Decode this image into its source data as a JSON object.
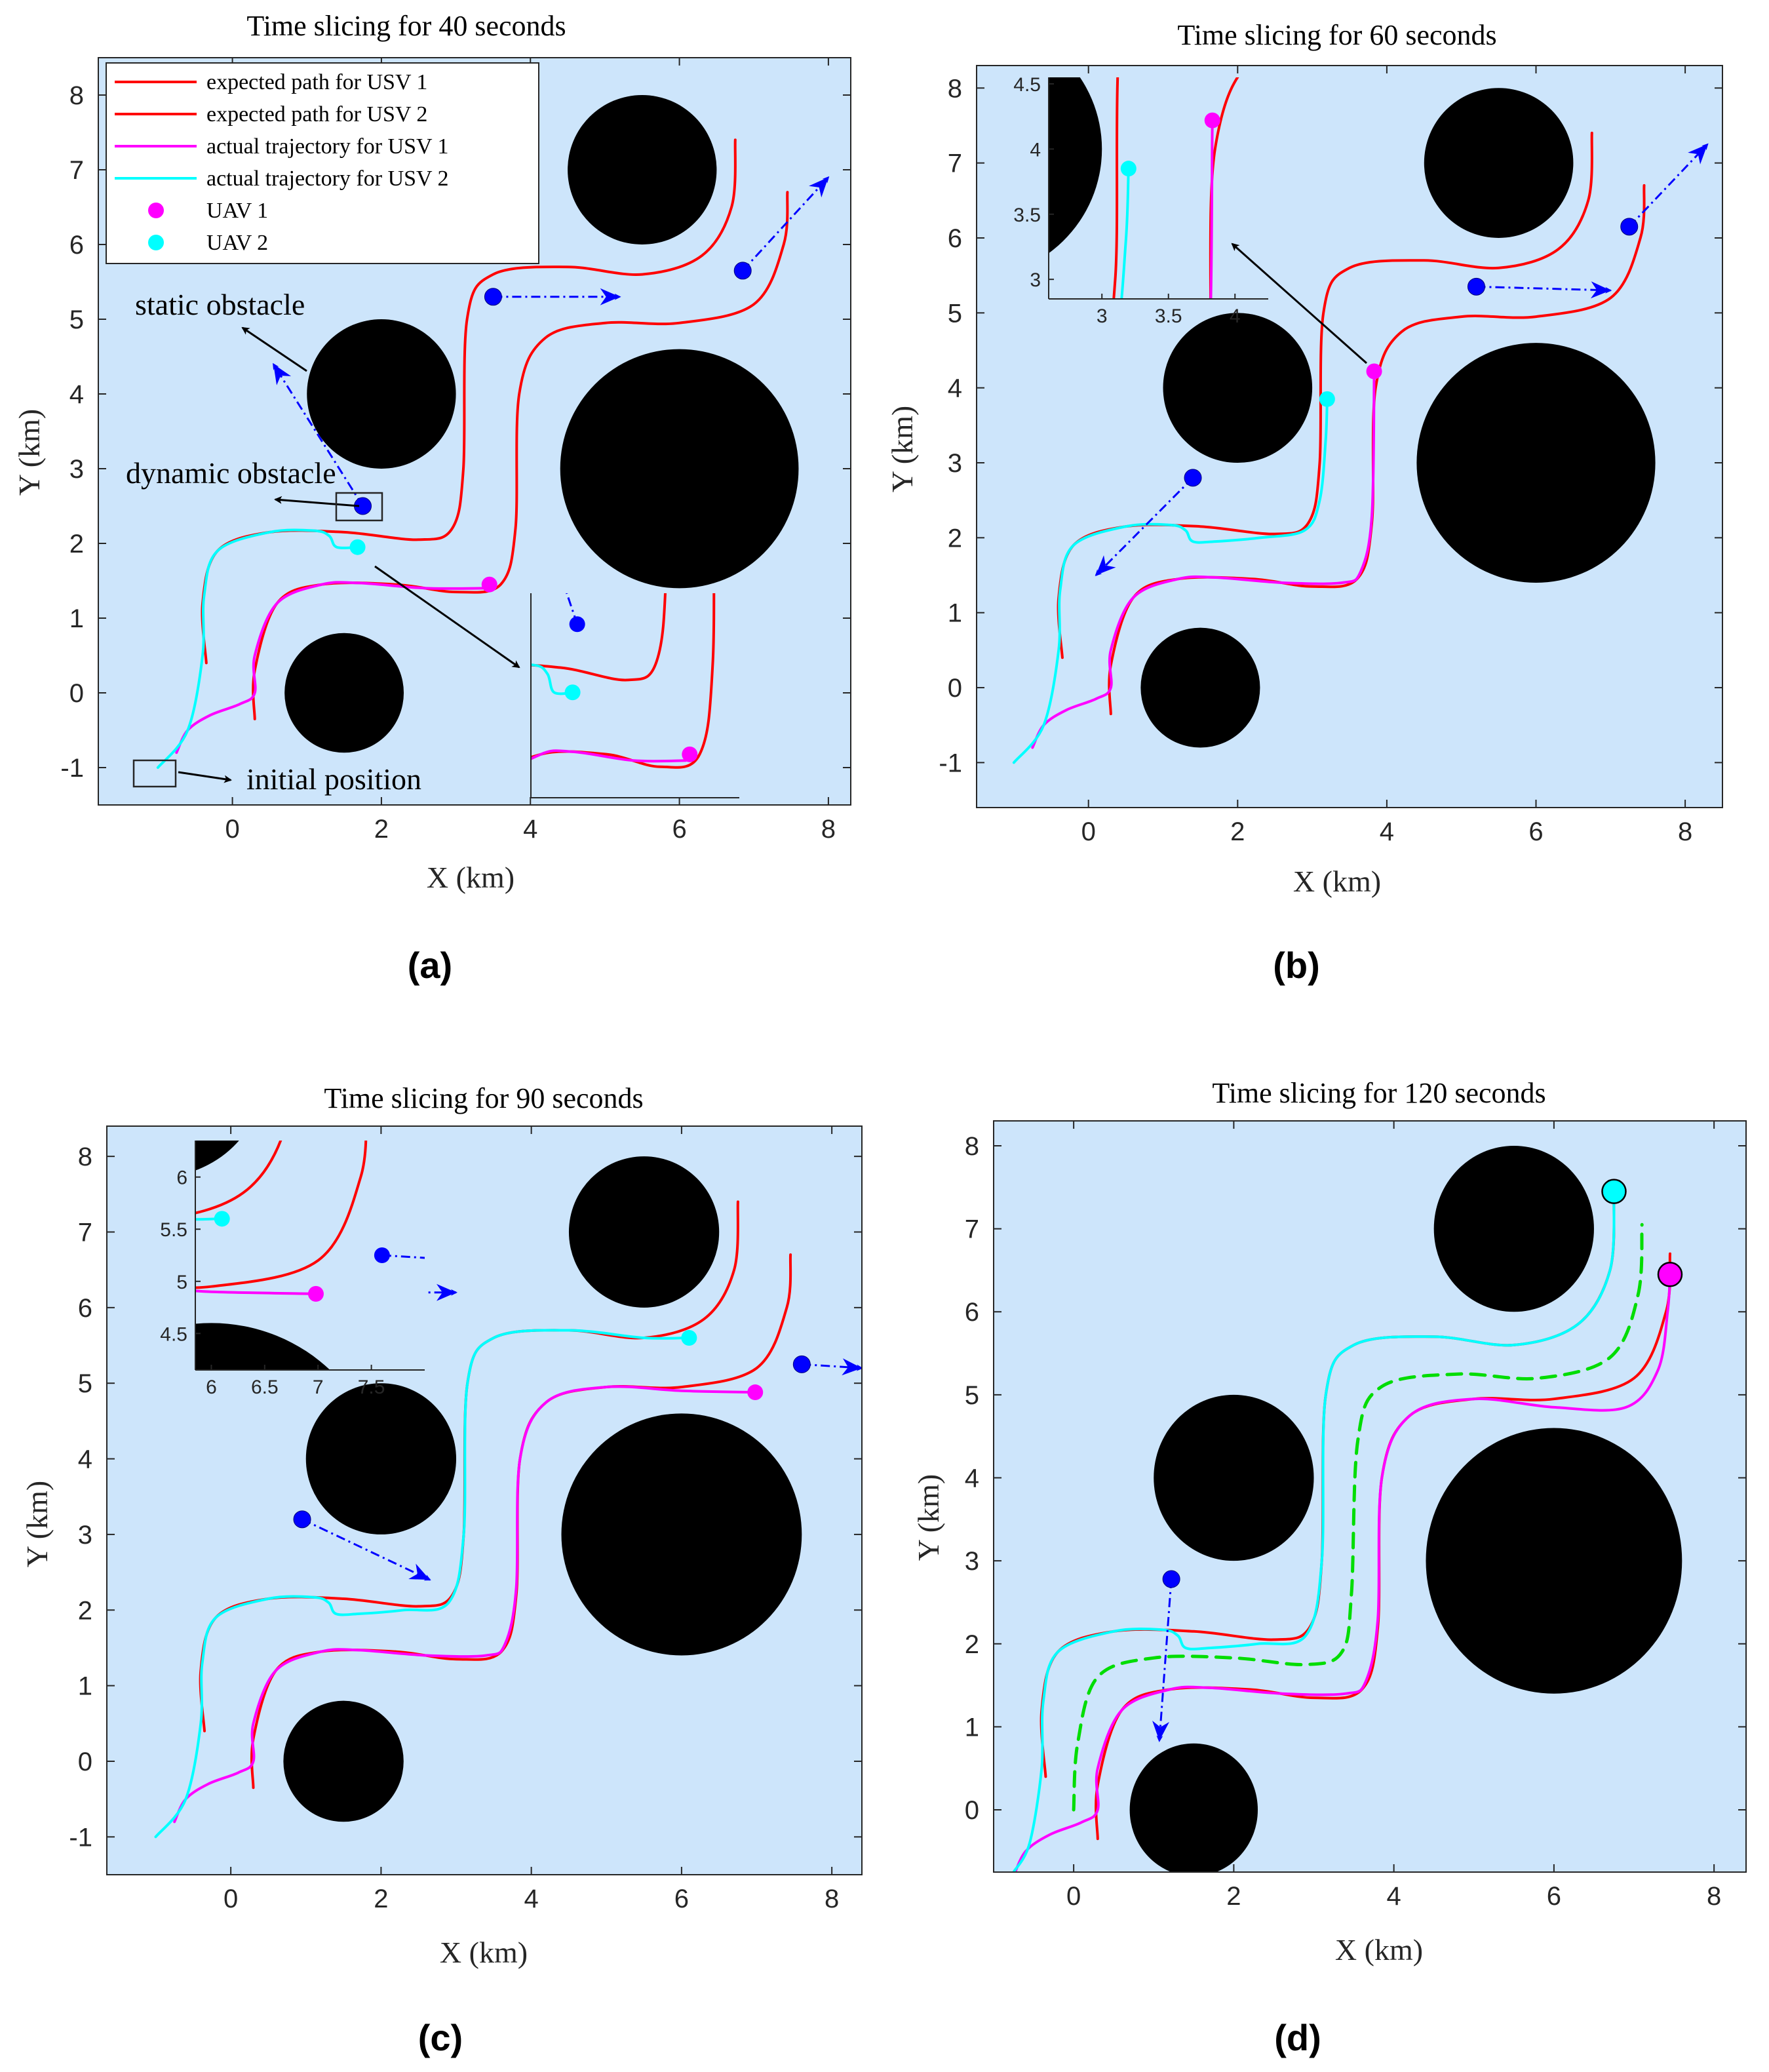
{
  "chart_data": [
    {
      "type": "line",
      "panel_label": "(a)",
      "title": "Time slicing for 40 seconds",
      "xlabel": "X (km)",
      "ylabel": "Y (km)",
      "xlim": [
        -1.8,
        8.3
      ],
      "ylim": [
        -1.5,
        8.5
      ],
      "xticks": [
        0,
        2,
        4,
        6,
        8
      ],
      "yticks": [
        -1,
        0,
        1,
        2,
        3,
        4,
        5,
        6,
        7,
        8
      ],
      "show_legend": true,
      "legend": [
        {
          "label": "expected path for USV 1",
          "color": "#ff0000",
          "kind": "line"
        },
        {
          "label": "expected path for USV 2",
          "color": "#ff0000",
          "kind": "line"
        },
        {
          "label": "actual trajectory for USV 1",
          "color": "#ff00ff",
          "kind": "line"
        },
        {
          "label": "actual trajectory for USV 2",
          "color": "#00ffff",
          "kind": "line"
        },
        {
          "label": "UAV 1",
          "color": "#ff00ff",
          "kind": "dot"
        },
        {
          "label": "UAV 2",
          "color": "#00ffff",
          "kind": "dot"
        }
      ],
      "annotations": [
        "static obstacle",
        "dynamic obstacle",
        "initial position"
      ],
      "obstacles": [
        {
          "x": 5.5,
          "y": 7.0,
          "r": 1.0
        },
        {
          "x": 2.0,
          "y": 4.0,
          "r": 1.0
        },
        {
          "x": 6.0,
          "y": 3.0,
          "r": 1.6
        },
        {
          "x": 1.5,
          "y": 0.0,
          "r": 0.8
        }
      ],
      "series": [
        {
          "name": "expected path for USV 1",
          "color": "#ff0000",
          "style": "solid",
          "x": [
            0.3,
            0.3,
            0.6,
            1.2,
            2.2,
            3.0,
            3.6,
            3.8,
            3.85,
            4.2,
            5.0,
            6.0,
            7.0,
            7.4,
            7.45
          ],
          "y": [
            -0.35,
            0.3,
            1.2,
            1.45,
            1.45,
            1.35,
            1.45,
            2.2,
            4.0,
            4.75,
            4.95,
            4.95,
            5.2,
            6.0,
            6.7
          ]
        },
        {
          "name": "expected path for USV 2",
          "color": "#ff0000",
          "style": "solid",
          "x": [
            -0.35,
            -0.4,
            -0.2,
            0.5,
            1.5,
            2.5,
            2.95,
            3.1,
            3.15,
            3.5,
            4.5,
            5.5,
            6.3,
            6.7,
            6.75
          ],
          "y": [
            0.4,
            1.2,
            1.9,
            2.15,
            2.15,
            2.05,
            2.2,
            3.0,
            5.0,
            5.6,
            5.7,
            5.6,
            5.85,
            6.5,
            7.4
          ]
        },
        {
          "name": "actual trajectory for USV 1",
          "color": "#ff00ff",
          "style": "solid",
          "x": [
            -0.75,
            -0.6,
            -0.3,
            0.1,
            0.3,
            0.3,
            0.6,
            1.2,
            1.7,
            2.6,
            3.4
          ],
          "y": [
            -0.8,
            -0.5,
            -0.3,
            -0.15,
            0.0,
            0.5,
            1.2,
            1.45,
            1.47,
            1.4,
            1.4
          ]
        },
        {
          "name": "actual trajectory for USV 2",
          "color": "#00ffff",
          "style": "solid",
          "x": [
            -1.0,
            -0.6,
            -0.4,
            -0.38,
            -0.2,
            0.5,
            1.1,
            1.3,
            1.4,
            1.7
          ],
          "y": [
            -1.0,
            -0.5,
            0.5,
            1.3,
            1.9,
            2.15,
            2.17,
            2.1,
            1.95,
            1.95
          ]
        }
      ],
      "uavs": [
        {
          "name": "UAV 1",
          "x": 3.45,
          "y": 1.45,
          "color": "#ff00ff"
        },
        {
          "name": "UAV 2",
          "x": 1.68,
          "y": 1.95,
          "color": "#00ffff"
        }
      ],
      "dynamic_obstacles": [
        {
          "x": 1.75,
          "y": 2.5,
          "dx": -1.2,
          "dy": 1.9
        },
        {
          "x": 3.5,
          "y": 5.3,
          "dx": 1.7,
          "dy": 0.0
        },
        {
          "x": 6.85,
          "y": 5.65,
          "dx": 1.15,
          "dy": 1.25
        }
      ]
    },
    {
      "type": "line",
      "panel_label": "(b)",
      "title": "Time slicing for 60 seconds",
      "xlabel": "X (km)",
      "ylabel": "Y (km)",
      "xlim": [
        -1.5,
        8.5
      ],
      "ylim": [
        -1.6,
        8.3
      ],
      "xticks": [
        0,
        2,
        4,
        6,
        8
      ],
      "yticks": [
        -1,
        0,
        1,
        2,
        3,
        4,
        5,
        6,
        7,
        8
      ],
      "show_legend": false,
      "inset": {
        "xlim": [
          2.6,
          4.25
        ],
        "ylim": [
          2.85,
          4.55
        ],
        "xticks": [
          3,
          3.5,
          4
        ],
        "yticks": [
          3,
          3.5,
          4,
          4.5
        ]
      },
      "obstacles": [
        {
          "x": 5.5,
          "y": 7.0,
          "r": 1.0
        },
        {
          "x": 2.0,
          "y": 4.0,
          "r": 1.0
        },
        {
          "x": 6.0,
          "y": 3.0,
          "r": 1.6
        },
        {
          "x": 1.5,
          "y": 0.0,
          "r": 0.8
        }
      ],
      "series": [
        {
          "name": "expected path for USV 1",
          "color": "#ff0000",
          "style": "solid",
          "x": [
            0.3,
            0.3,
            0.6,
            1.2,
            2.2,
            3.0,
            3.6,
            3.8,
            3.85,
            4.2,
            5.0,
            6.0,
            7.0,
            7.4,
            7.45
          ],
          "y": [
            -0.35,
            0.3,
            1.2,
            1.45,
            1.45,
            1.35,
            1.45,
            2.2,
            4.0,
            4.75,
            4.95,
            4.95,
            5.2,
            6.0,
            6.7
          ]
        },
        {
          "name": "expected path for USV 2",
          "color": "#ff0000",
          "style": "solid",
          "x": [
            -0.35,
            -0.4,
            -0.2,
            0.5,
            1.5,
            2.5,
            2.95,
            3.1,
            3.15,
            3.5,
            4.5,
            5.5,
            6.3,
            6.7,
            6.75
          ],
          "y": [
            0.4,
            1.2,
            1.9,
            2.15,
            2.15,
            2.05,
            2.2,
            3.0,
            5.0,
            5.6,
            5.7,
            5.6,
            5.85,
            6.5,
            7.4
          ]
        },
        {
          "name": "actual trajectory for USV 1",
          "color": "#ff00ff",
          "style": "solid",
          "x": [
            -0.75,
            -0.6,
            -0.3,
            0.1,
            0.3,
            0.3,
            0.6,
            1.2,
            1.7,
            2.6,
            3.4,
            3.65,
            3.8,
            3.83
          ],
          "y": [
            -0.8,
            -0.5,
            -0.3,
            -0.15,
            0.0,
            0.5,
            1.2,
            1.45,
            1.47,
            1.4,
            1.4,
            1.55,
            2.3,
            4.2
          ]
        },
        {
          "name": "actual trajectory for USV 2",
          "color": "#00ffff",
          "style": "solid",
          "x": [
            -1.0,
            -0.6,
            -0.4,
            -0.38,
            -0.2,
            0.5,
            1.1,
            1.3,
            1.4,
            1.7,
            2.3,
            2.9,
            3.1,
            3.18,
            3.2
          ],
          "y": [
            -1.0,
            -0.5,
            0.5,
            1.3,
            1.9,
            2.15,
            2.17,
            2.1,
            1.95,
            1.95,
            2.0,
            2.1,
            2.5,
            3.3,
            3.85
          ]
        }
      ],
      "uavs": [
        {
          "name": "UAV 1",
          "x": 3.83,
          "y": 4.22,
          "color": "#ff00ff"
        },
        {
          "name": "UAV 2",
          "x": 3.2,
          "y": 3.85,
          "color": "#00ffff"
        }
      ],
      "dynamic_obstacles": [
        {
          "x": 1.4,
          "y": 2.8,
          "dx": -1.3,
          "dy": -1.3
        },
        {
          "x": 5.2,
          "y": 5.35,
          "dx": 1.8,
          "dy": -0.05
        },
        {
          "x": 7.25,
          "y": 6.15,
          "dx": 1.05,
          "dy": 1.1
        }
      ]
    },
    {
      "type": "line",
      "panel_label": "(c)",
      "title": "Time slicing for 90 seconds",
      "xlabel": "X (km)",
      "ylabel": "Y (km)",
      "xlim": [
        -1.65,
        8.4
      ],
      "ylim": [
        -1.5,
        8.4
      ],
      "xticks": [
        0,
        2,
        4,
        6,
        8
      ],
      "yticks": [
        -1,
        0,
        1,
        2,
        3,
        4,
        5,
        6,
        7,
        8
      ],
      "show_legend": false,
      "inset": {
        "xlim": [
          5.85,
          8.0
        ],
        "ylim": [
          4.15,
          6.35
        ],
        "xticks": [
          6,
          6.5,
          7,
          7.5
        ],
        "yticks": [
          4.5,
          5,
          5.5,
          6
        ]
      },
      "obstacles": [
        {
          "x": 5.5,
          "y": 7.0,
          "r": 1.0
        },
        {
          "x": 2.0,
          "y": 4.0,
          "r": 1.0
        },
        {
          "x": 6.0,
          "y": 3.0,
          "r": 1.6
        },
        {
          "x": 1.5,
          "y": 0.0,
          "r": 0.8
        }
      ],
      "series": [
        {
          "name": "expected path for USV 1",
          "color": "#ff0000",
          "style": "solid",
          "x": [
            0.3,
            0.3,
            0.6,
            1.2,
            2.2,
            3.0,
            3.6,
            3.8,
            3.85,
            4.2,
            5.0,
            6.0,
            7.0,
            7.4,
            7.45
          ],
          "y": [
            -0.35,
            0.3,
            1.2,
            1.45,
            1.45,
            1.35,
            1.45,
            2.2,
            4.0,
            4.75,
            4.95,
            4.95,
            5.2,
            6.0,
            6.7
          ]
        },
        {
          "name": "expected path for USV 2",
          "color": "#ff0000",
          "style": "solid",
          "x": [
            -0.35,
            -0.4,
            -0.2,
            0.5,
            1.5,
            2.5,
            2.95,
            3.1,
            3.15,
            3.5,
            4.5,
            5.5,
            6.3,
            6.7,
            6.75
          ],
          "y": [
            0.4,
            1.2,
            1.9,
            2.15,
            2.15,
            2.05,
            2.2,
            3.0,
            5.0,
            5.6,
            5.7,
            5.6,
            5.85,
            6.5,
            7.4
          ]
        },
        {
          "name": "actual trajectory for USV 1",
          "color": "#ff00ff",
          "style": "solid",
          "x": [
            -0.75,
            -0.6,
            -0.3,
            0.1,
            0.3,
            0.3,
            0.6,
            1.2,
            1.7,
            2.6,
            3.4,
            3.65,
            3.8,
            3.85,
            4.2,
            5.0,
            6.0,
            6.98
          ],
          "y": [
            -0.8,
            -0.5,
            -0.3,
            -0.15,
            0.0,
            0.5,
            1.2,
            1.45,
            1.47,
            1.4,
            1.4,
            1.55,
            2.3,
            4.0,
            4.75,
            4.95,
            4.9,
            4.88
          ]
        },
        {
          "name": "actual trajectory for USV 2",
          "color": "#00ffff",
          "style": "solid",
          "x": [
            -1.0,
            -0.6,
            -0.4,
            -0.38,
            -0.2,
            0.5,
            1.1,
            1.3,
            1.4,
            1.7,
            2.3,
            2.9,
            3.1,
            3.15,
            3.5,
            4.5,
            5.5,
            6.1
          ],
          "y": [
            -1.0,
            -0.5,
            0.5,
            1.3,
            1.9,
            2.15,
            2.17,
            2.1,
            1.95,
            1.95,
            2.0,
            2.1,
            3.0,
            5.0,
            5.6,
            5.7,
            5.6,
            5.6
          ]
        }
      ],
      "uavs": [
        {
          "name": "UAV 1",
          "x": 6.98,
          "y": 4.88,
          "color": "#ff00ff"
        },
        {
          "name": "UAV 2",
          "x": 6.1,
          "y": 5.6,
          "color": "#00ffff"
        }
      ],
      "dynamic_obstacles": [
        {
          "x": 0.95,
          "y": 3.2,
          "dx": 1.7,
          "dy": -0.8
        },
        {
          "x": 1.95,
          "y": 6.2,
          "dx": 1.05,
          "dy": 0.0
        },
        {
          "x": 7.6,
          "y": 5.25,
          "dx": 0.8,
          "dy": -0.05
        }
      ]
    },
    {
      "type": "line",
      "panel_label": "(d)",
      "title": "Time slicing for 120 seconds",
      "xlabel": "X (km)",
      "ylabel": "Y (km)",
      "xlim": [
        -1.0,
        8.4
      ],
      "ylim": [
        -0.75,
        8.3
      ],
      "xticks": [
        0,
        2,
        4,
        6,
        8
      ],
      "yticks": [
        0,
        1,
        2,
        3,
        4,
        5,
        6,
        7,
        8
      ],
      "show_legend": false,
      "obstacles": [
        {
          "x": 5.5,
          "y": 7.0,
          "r": 1.0
        },
        {
          "x": 2.0,
          "y": 4.0,
          "r": 1.0
        },
        {
          "x": 6.0,
          "y": 3.0,
          "r": 1.6
        },
        {
          "x": 1.5,
          "y": 0.0,
          "r": 0.8
        }
      ],
      "series": [
        {
          "name": "expected path for USV 1",
          "color": "#ff0000",
          "style": "solid",
          "x": [
            0.3,
            0.3,
            0.6,
            1.2,
            2.2,
            3.0,
            3.6,
            3.8,
            3.85,
            4.2,
            5.0,
            6.0,
            7.0,
            7.4,
            7.45
          ],
          "y": [
            -0.35,
            0.3,
            1.2,
            1.45,
            1.45,
            1.35,
            1.45,
            2.2,
            4.0,
            4.75,
            4.95,
            4.95,
            5.2,
            6.0,
            6.7
          ]
        },
        {
          "name": "expected path for USV 2",
          "color": "#ff0000",
          "style": "solid",
          "x": [
            -0.35,
            -0.4,
            -0.2,
            0.5,
            1.5,
            2.5,
            2.95,
            3.1,
            3.15,
            3.5,
            4.5,
            5.5,
            6.3,
            6.7,
            6.75
          ],
          "y": [
            0.4,
            1.2,
            1.9,
            2.15,
            2.15,
            2.05,
            2.2,
            3.0,
            5.0,
            5.6,
            5.7,
            5.6,
            5.85,
            6.5,
            7.4
          ]
        },
        {
          "name": "actual trajectory for USV 1",
          "color": "#ff00ff",
          "style": "solid",
          "x": [
            -0.75,
            -0.6,
            -0.3,
            0.1,
            0.3,
            0.3,
            0.6,
            1.2,
            1.7,
            2.6,
            3.4,
            3.65,
            3.8,
            3.85,
            4.2,
            5.0,
            6.0,
            6.9,
            7.3,
            7.42,
            7.45
          ],
          "y": [
            -0.8,
            -0.5,
            -0.3,
            -0.15,
            0.0,
            0.5,
            1.2,
            1.45,
            1.47,
            1.4,
            1.4,
            1.55,
            2.3,
            4.0,
            4.75,
            4.95,
            4.85,
            4.85,
            5.3,
            6.0,
            6.45
          ]
        },
        {
          "name": "actual trajectory for USV 2",
          "color": "#00ffff",
          "style": "solid",
          "x": [
            -0.75,
            -0.55,
            -0.4,
            -0.38,
            -0.2,
            0.5,
            1.1,
            1.3,
            1.4,
            1.7,
            2.3,
            2.9,
            3.1,
            3.15,
            3.5,
            4.5,
            5.5,
            6.3,
            6.7,
            6.75
          ],
          "y": [
            -0.75,
            -0.4,
            0.5,
            1.3,
            1.9,
            2.15,
            2.17,
            2.1,
            1.95,
            1.95,
            2.0,
            2.1,
            3.0,
            5.0,
            5.6,
            5.7,
            5.6,
            5.85,
            6.5,
            7.45
          ]
        },
        {
          "name": "centre line",
          "color": "#00dd00",
          "style": "dashed",
          "x": [
            0.0,
            0.05,
            0.3,
            1.0,
            2.0,
            2.9,
            3.35,
            3.47,
            3.55,
            3.85,
            4.8,
            5.8,
            6.7,
            7.05,
            7.1
          ],
          "y": [
            0.0,
            0.8,
            1.6,
            1.83,
            1.83,
            1.75,
            1.9,
            2.6,
            4.45,
            5.1,
            5.25,
            5.2,
            5.45,
            6.2,
            7.05
          ]
        }
      ],
      "uavs": [
        {
          "name": "UAV 1",
          "x": 7.45,
          "y": 6.45,
          "color": "#ff00ff",
          "big": true
        },
        {
          "name": "UAV 2",
          "x": 6.75,
          "y": 7.45,
          "color": "#00ffff",
          "big": true
        }
      ],
      "dynamic_obstacles": [
        {
          "x": 1.22,
          "y": 2.78,
          "dx": -0.15,
          "dy": -1.95
        }
      ]
    }
  ]
}
